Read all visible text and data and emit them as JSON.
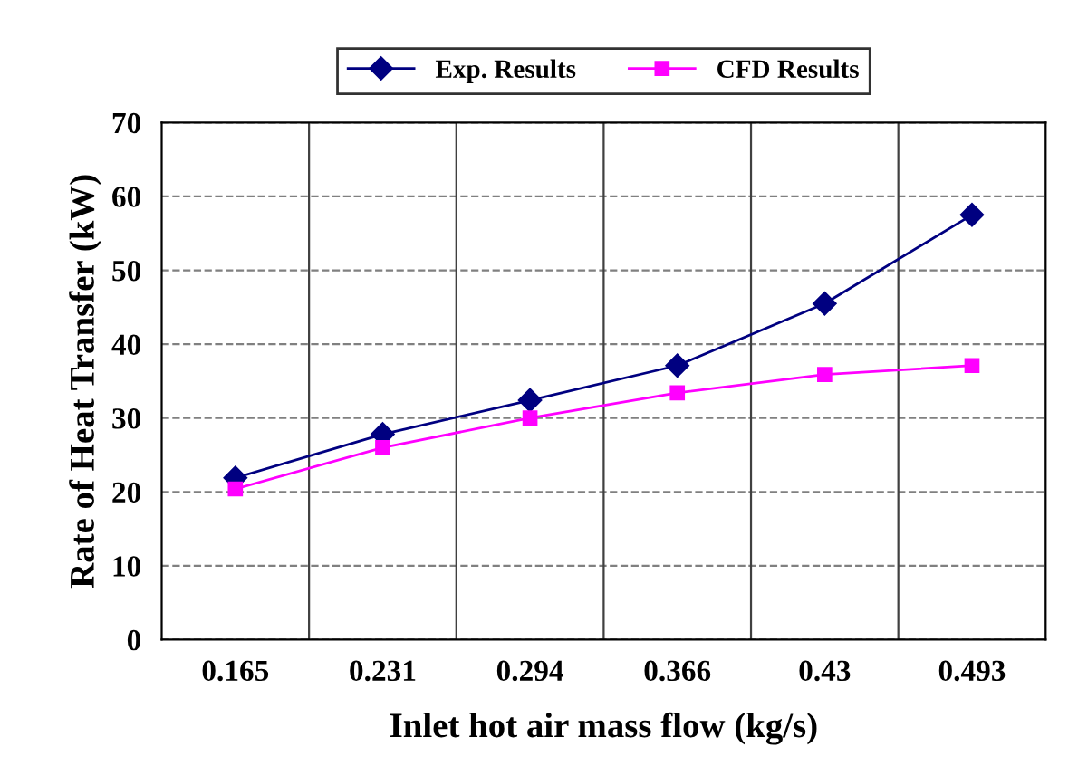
{
  "chart_data": {
    "type": "line",
    "xlabel": "Inlet hot air mass flow (kg/s)",
    "ylabel": "Rate of Heat Transfer (kW)",
    "categories": [
      "0.165",
      "0.231",
      "0.294",
      "0.366",
      "0.43",
      "0.493"
    ],
    "series": [
      {
        "name": "Exp. Results",
        "color": "#000080",
        "marker": "diamond",
        "values": [
          21.9,
          27.8,
          32.4,
          37.1,
          45.5,
          57.5
        ]
      },
      {
        "name": "CFD Results",
        "color": "#ff00ff",
        "marker": "square",
        "values": [
          20.4,
          26.0,
          30.0,
          33.4,
          35.9,
          37.1
        ]
      }
    ],
    "ylim": [
      0,
      70
    ],
    "yticks": [
      0,
      10,
      20,
      30,
      40,
      50,
      60,
      70
    ],
    "grid": true,
    "legend": "top",
    "line_style": "solid"
  }
}
